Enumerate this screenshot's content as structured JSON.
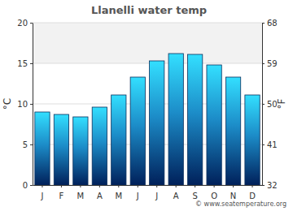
{
  "chart_data": {
    "type": "bar",
    "title": "Llanelli water temp",
    "categories": [
      "J",
      "F",
      "M",
      "A",
      "M",
      "J",
      "J",
      "A",
      "S",
      "O",
      "N",
      "D"
    ],
    "values": [
      9.0,
      8.7,
      8.4,
      9.6,
      11.1,
      13.3,
      15.3,
      16.2,
      16.1,
      14.8,
      13.3,
      11.1
    ],
    "color": "#2ec8f2",
    "y_label": "°C",
    "y2_label": "°F",
    "ylim": [
      0,
      20
    ],
    "yticks": [
      0,
      5,
      10,
      15,
      20
    ],
    "y2lim": [
      32,
      68
    ],
    "y2ticks": [
      32,
      41,
      50,
      59,
      68
    ],
    "grid": true,
    "annotations": [
      "© www.seatemperature.org"
    ]
  }
}
